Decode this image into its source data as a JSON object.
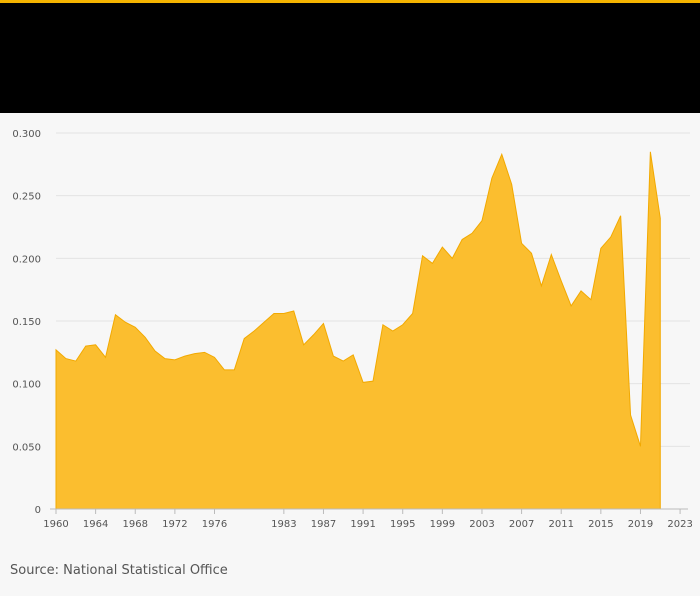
{
  "colors": {
    "accent": "#f5b400",
    "header_bg": "#000000",
    "area_fill": "#fbbe2f",
    "area_stroke": "#f2a900",
    "grid": "#e3e3e3",
    "background": "#f7f7f7"
  },
  "source": "Source: National Statistical Office",
  "chart_data": {
    "type": "area",
    "title": "",
    "xlabel": "",
    "ylabel": "",
    "grid": "horizontal",
    "legend": "none",
    "ylim": [
      0,
      0.3
    ],
    "xlim": [
      1960,
      2024
    ],
    "y_ticks": [
      {
        "value": 0,
        "label": "0"
      },
      {
        "value": 0.05,
        "label": "0.050"
      },
      {
        "value": 0.1,
        "label": "0.100"
      },
      {
        "value": 0.15,
        "label": "0.150"
      },
      {
        "value": 0.2,
        "label": "0.200"
      },
      {
        "value": 0.25,
        "label": "0.250"
      },
      {
        "value": 0.3,
        "label": "0.300"
      }
    ],
    "x_ticks": [
      {
        "value": 1960,
        "label": "1960"
      },
      {
        "value": 1964,
        "label": "1964"
      },
      {
        "value": 1968,
        "label": "1968"
      },
      {
        "value": 1972,
        "label": "1972"
      },
      {
        "value": 1976,
        "label": "1976"
      },
      {
        "value": 1983,
        "label": "1983"
      },
      {
        "value": 1987,
        "label": "1987"
      },
      {
        "value": 1991,
        "label": "1991"
      },
      {
        "value": 1995,
        "label": "1995"
      },
      {
        "value": 1999,
        "label": "1999"
      },
      {
        "value": 2003,
        "label": "2003"
      },
      {
        "value": 2007,
        "label": "2007"
      },
      {
        "value": 2011,
        "label": "2011"
      },
      {
        "value": 2015,
        "label": "2015"
      },
      {
        "value": 2019,
        "label": "2019"
      },
      {
        "value": 2023,
        "label": "2023"
      }
    ],
    "x": [
      1960,
      1961,
      1962,
      1963,
      1964,
      1965,
      1966,
      1967,
      1968,
      1969,
      1970,
      1971,
      1972,
      1973,
      1974,
      1975,
      1976,
      1977,
      1978,
      1979,
      1980,
      1981,
      1982,
      1983,
      1984,
      1985,
      1986,
      1987,
      1988,
      1989,
      1990,
      1991,
      1992,
      1993,
      1994,
      1995,
      1996,
      1997,
      1998,
      1999,
      2000,
      2001,
      2002,
      2003,
      2004,
      2005,
      2006,
      2007,
      2008,
      2009,
      2010,
      2011,
      2012,
      2013,
      2014,
      2015,
      2016,
      2017,
      2018,
      2019,
      2020,
      2021,
      2022,
      2023,
      2024
    ],
    "values": [
      0.127,
      0.12,
      0.118,
      0.13,
      0.131,
      0.121,
      0.155,
      0.149,
      0.145,
      0.137,
      0.126,
      0.12,
      0.119,
      0.122,
      0.124,
      0.125,
      0.121,
      0.111,
      0.111,
      0.136,
      0.142,
      0.149,
      0.156,
      0.156,
      0.158,
      0.131,
      0.139,
      0.148,
      0.122,
      0.118,
      0.123,
      0.101,
      0.102,
      0.147,
      0.142,
      0.147,
      0.156,
      0.202,
      0.196,
      0.209,
      0.2,
      0.215,
      0.22,
      0.23,
      0.264,
      0.283,
      0.259,
      0.212,
      0.204,
      0.178,
      0.203,
      0.182,
      0.162,
      0.174,
      0.167,
      0.208,
      0.217,
      0.234,
      0.075,
      0.05,
      0.285,
      0.232,
      null,
      null,
      null
    ]
  }
}
